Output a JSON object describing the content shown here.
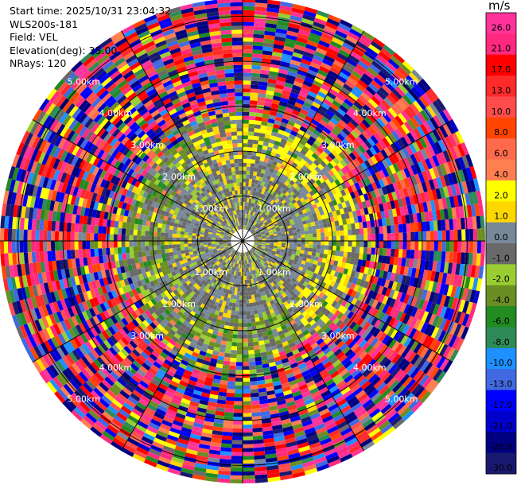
{
  "info": {
    "start_time": "Start time: 2025/10/31 23:04:32",
    "instrument": "WLS200s-181",
    "field": "Field: VEL",
    "elevation": "Elevation(deg): 35.00",
    "nrays": "NRays: 120"
  },
  "chart_data": {
    "type": "heatmap",
    "projection": "polar-ppi",
    "field": "VEL",
    "elevation_deg": 35.0,
    "n_rays": 120,
    "unit": "m/s",
    "range_rings": [
      {
        "label": "1.00km"
      },
      {
        "label": "2.00km"
      },
      {
        "label": "3.00km"
      },
      {
        "label": "4.00km"
      },
      {
        "label": "5.00km"
      }
    ],
    "colorbar": {
      "ticks": [
        "26.0",
        "21.0",
        "17.0",
        "13.0",
        "10.0",
        "8.0",
        "6.0",
        "4.0",
        "2.0",
        "1.0",
        "0.0",
        "-1.0",
        "-2.0",
        "-4.0",
        "-6.0",
        "-8.0",
        "-10.0",
        "-13.0",
        "-17.0",
        "-21.0",
        "-26.0",
        "-30.0"
      ],
      "bins": [
        {
          "lo": 26,
          "hi": 30,
          "color": "#ff3399"
        },
        {
          "lo": 21,
          "hi": 26,
          "color": "#ff2a7f"
        },
        {
          "lo": 17,
          "hi": 21,
          "color": "#ff0000"
        },
        {
          "lo": 13,
          "hi": 17,
          "color": "#ff2a2a"
        },
        {
          "lo": 10,
          "hi": 13,
          "color": "#ff4d4d"
        },
        {
          "lo": 8,
          "hi": 10,
          "color": "#ff4500"
        },
        {
          "lo": 6,
          "hi": 8,
          "color": "#ff6a4d"
        },
        {
          "lo": 4,
          "hi": 6,
          "color": "#ff7f50"
        },
        {
          "lo": 2,
          "hi": 4,
          "color": "#ffff00"
        },
        {
          "lo": 1,
          "hi": 2,
          "color": "#ffd700"
        },
        {
          "lo": 0,
          "hi": 1,
          "color": "#778899"
        },
        {
          "lo": -1,
          "hi": 0,
          "color": "#696969"
        },
        {
          "lo": -2,
          "hi": -1,
          "color": "#9acd32"
        },
        {
          "lo": -4,
          "hi": -2,
          "color": "#6b8e23"
        },
        {
          "lo": -6,
          "hi": -4,
          "color": "#228b22"
        },
        {
          "lo": -8,
          "hi": -6,
          "color": "#2e8b57"
        },
        {
          "lo": -10,
          "hi": -8,
          "color": "#1e90ff"
        },
        {
          "lo": -13,
          "hi": -10,
          "color": "#4169e1"
        },
        {
          "lo": -17,
          "hi": -13,
          "color": "#0000ff"
        },
        {
          "lo": -21,
          "hi": -17,
          "color": "#0000cd"
        },
        {
          "lo": -26,
          "hi": -21,
          "color": "#000080"
        },
        {
          "lo": -30,
          "hi": -26,
          "color": "#191970"
        }
      ]
    }
  }
}
